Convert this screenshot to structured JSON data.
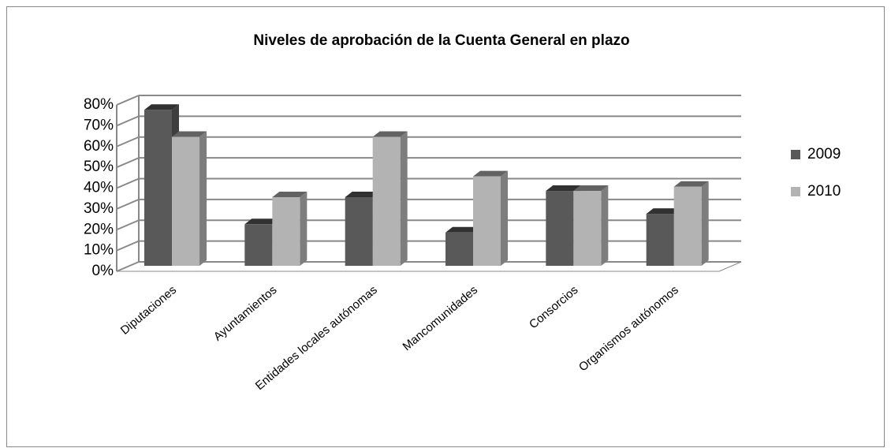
{
  "chart_data": {
    "type": "bar3d",
    "title": "Niveles de aprobación  de la Cuenta  General en plazo",
    "categories": [
      "Diputaciones",
      "Ayuntamientos",
      "Entidades locales autónomas",
      "Mancomunidades",
      "Consorcios",
      "Organismos autónomos"
    ],
    "series": [
      {
        "name": "2009",
        "color": "#595959",
        "values": [
          75,
          20,
          33,
          16,
          36,
          25
        ]
      },
      {
        "name": "2010",
        "color": "#b3b3b3",
        "values": [
          62,
          33,
          62,
          43,
          36,
          38
        ]
      }
    ],
    "ylim": [
      0,
      80
    ],
    "yticks": [
      {
        "value": 0,
        "label": "0%"
      },
      {
        "value": 10,
        "label": "10%"
      },
      {
        "value": 20,
        "label": "20%"
      },
      {
        "value": 30,
        "label": "30%"
      },
      {
        "value": 40,
        "label": "40%"
      },
      {
        "value": 50,
        "label": "50%"
      },
      {
        "value": 60,
        "label": "60%"
      },
      {
        "value": 70,
        "label": "70%"
      },
      {
        "value": 80,
        "label": "80%"
      }
    ],
    "grid": true,
    "legend": "right"
  }
}
